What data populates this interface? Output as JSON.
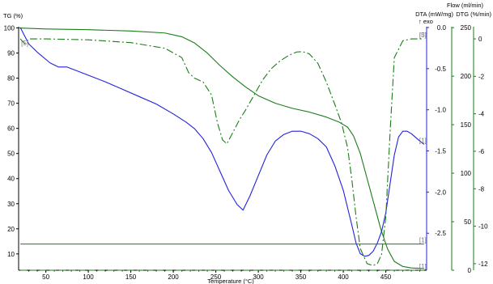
{
  "chart_data": {
    "type": "line",
    "xlabel": "Temperature (°C)",
    "x_ticks": [
      50,
      100,
      150,
      200,
      250,
      300,
      350,
      400,
      450
    ],
    "xlim": [
      18,
      498
    ],
    "colors": {
      "tg": "#1a7d1a",
      "dta": "#2222dd",
      "dtg": "#1a7d1a",
      "flow": "#1a7d1a",
      "axis_left": "#000000",
      "axis_dta": "#2222dd",
      "axis_green": "#1a7d1a"
    },
    "axes": {
      "tg": {
        "label": "TG (%)",
        "ticks": [
          100,
          90,
          80,
          70,
          60,
          50,
          40,
          30,
          20,
          10
        ],
        "lim": [
          3.5,
          100.5
        ]
      },
      "dta": {
        "label": "DTA (mW/mg)",
        "sublabel": "↑ exo",
        "ticks": [
          "0.0",
          "-0.5",
          "-1.0",
          "-1.5",
          "-2.0",
          "-2.5"
        ],
        "lim": [
          -2.95,
          0.01
        ]
      },
      "flow": {
        "label": "Flow (ml/min)",
        "ticks": [
          250,
          200,
          150,
          100,
          50,
          0
        ],
        "lim": [
          0,
          251
        ]
      },
      "dtg": {
        "label": "DTG (%/min)",
        "ticks": [
          0,
          -2,
          -4,
          -6,
          -8,
          -10,
          -12
        ],
        "lim": [
          -12.35,
          0.65
        ]
      }
    },
    "series": [
      {
        "key": "tg",
        "style": "solid",
        "axis": "tg",
        "x": [
          18,
          50,
          100,
          150,
          190,
          210,
          225,
          240,
          255,
          270,
          285,
          300,
          320,
          340,
          360,
          380,
          395,
          405,
          412,
          420,
          428,
          436,
          444,
          452,
          460,
          470,
          480,
          495
        ],
        "y": [
          100,
          99.6,
          99.3,
          98.8,
          98.0,
          96.5,
          94.0,
          90.0,
          85.0,
          80.5,
          76.5,
          73.0,
          70.0,
          68.0,
          66.5,
          64.5,
          62.5,
          60.5,
          57.0,
          50.0,
          40.0,
          30.0,
          20.0,
          12.0,
          7.0,
          5.0,
          4.4,
          4.2
        ]
      },
      {
        "key": "dta",
        "style": "solid",
        "axis": "dta",
        "x": [
          20,
          25,
          30,
          40,
          55,
          65,
          75,
          85,
          100,
          120,
          140,
          160,
          180,
          200,
          215,
          225,
          235,
          245,
          255,
          265,
          275,
          282,
          290,
          300,
          310,
          320,
          330,
          340,
          350,
          360,
          370,
          380,
          390,
          400,
          410,
          415,
          420,
          425,
          430,
          435,
          440,
          445,
          450,
          455,
          460,
          465,
          470,
          475,
          480,
          490,
          495
        ],
        "y": [
          0.0,
          -0.1,
          -0.2,
          -0.3,
          -0.43,
          -0.48,
          -0.48,
          -0.52,
          -0.58,
          -0.66,
          -0.75,
          -0.84,
          -0.93,
          -1.05,
          -1.15,
          -1.23,
          -1.35,
          -1.52,
          -1.75,
          -1.98,
          -2.15,
          -2.22,
          -2.05,
          -1.8,
          -1.55,
          -1.38,
          -1.3,
          -1.26,
          -1.26,
          -1.29,
          -1.35,
          -1.45,
          -1.68,
          -1.98,
          -2.4,
          -2.62,
          -2.75,
          -2.78,
          -2.77,
          -2.72,
          -2.62,
          -2.48,
          -2.25,
          -1.9,
          -1.55,
          -1.33,
          -1.26,
          -1.26,
          -1.29,
          -1.38,
          -1.42
        ]
      },
      {
        "key": "dtg",
        "style": "dashdot",
        "axis": "dtg",
        "x": [
          20,
          25,
          30,
          50,
          100,
          150,
          190,
          210,
          218,
          225,
          235,
          245,
          252,
          258,
          263,
          270,
          278,
          285,
          295,
          305,
          315,
          325,
          335,
          345,
          352,
          360,
          370,
          380,
          390,
          398,
          405,
          410,
          415,
          420,
          428,
          435,
          440,
          445,
          450,
          455,
          460,
          470,
          480,
          495
        ],
        "y": [
          0.0,
          -0.25,
          0.0,
          0.0,
          -0.05,
          -0.2,
          -0.5,
          -1.0,
          -1.8,
          -2.1,
          -2.3,
          -3.0,
          -4.5,
          -5.4,
          -5.6,
          -5.0,
          -4.3,
          -3.8,
          -3.0,
          -2.2,
          -1.6,
          -1.2,
          -0.9,
          -0.7,
          -0.68,
          -0.8,
          -1.3,
          -2.3,
          -3.5,
          -4.5,
          -5.8,
          -7.5,
          -9.5,
          -11.2,
          -12.0,
          -12.1,
          -12.0,
          -11.5,
          -9.5,
          -5.0,
          -1.0,
          -0.1,
          0.0,
          0.0
        ]
      },
      {
        "key": "flow1",
        "style": "solid",
        "axis": "flow",
        "x": [
          20,
          495
        ],
        "y": [
          27,
          27
        ]
      },
      {
        "key": "flow2",
        "style": "dashed",
        "axis": "flow",
        "x": [
          20,
          495
        ],
        "y": [
          0,
          0
        ]
      }
    ],
    "end_markers": [
      "[3]",
      "[1]",
      "[1]",
      "[5]",
      "[1]"
    ],
    "start_marker": "[5]",
    "end_marker_series": [
      "dtg",
      "dta",
      "flow1",
      "dtg",
      "flow2"
    ]
  }
}
